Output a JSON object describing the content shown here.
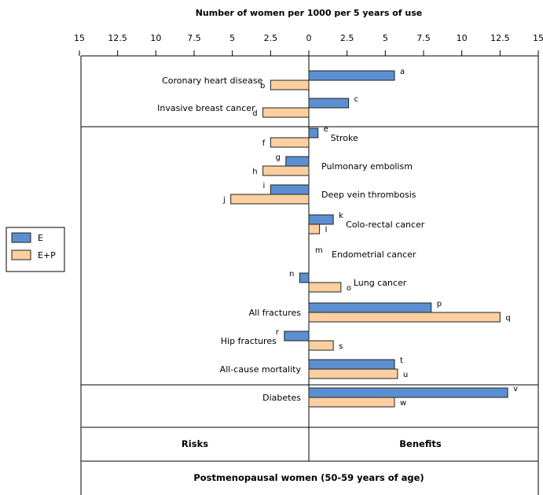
{
  "chart_data": {
    "type": "bar",
    "orientation": "horizontal",
    "title": "Number of women per 1000 per 5 years of use",
    "xlim": [
      -15,
      15
    ],
    "x_ticks": [
      -15,
      -12.5,
      -10,
      -7.5,
      -5,
      -2.5,
      0,
      2.5,
      5,
      7.5,
      10,
      12.5,
      15
    ],
    "x_tick_labels": [
      "15",
      "12.5",
      "10",
      "7.5",
      "5",
      "2.5",
      "0",
      "2.5",
      "5",
      "7.5",
      "10",
      "12.5",
      "15"
    ],
    "legend": {
      "placement": "left",
      "items": [
        {
          "label": "E",
          "color": "#5b8fd0"
        },
        {
          "label": "E+P",
          "color": "#fbcf9f"
        }
      ]
    },
    "colors": {
      "E": "#5b8fd0",
      "E+P": "#fbcf9f",
      "bar_stroke": "#222222"
    },
    "categories": [
      {
        "name": "Coronary heart disease",
        "label_side": "left",
        "group": 1,
        "bars": [
          {
            "series": "E",
            "value": 5.6,
            "letter": "a"
          },
          {
            "series": "E+P",
            "value": -2.5,
            "letter": "b"
          }
        ]
      },
      {
        "name": "Invasive breast cancer",
        "label_side": "left",
        "group": 1,
        "bars": [
          {
            "series": "E",
            "value": 2.6,
            "letter": "c"
          },
          {
            "series": "E+P",
            "value": -3.0,
            "letter": "d"
          }
        ]
      },
      {
        "name": "Stroke",
        "label_side": "right",
        "group": 2,
        "bars": [
          {
            "series": "E",
            "value": 0.6,
            "letter": "e"
          },
          {
            "series": "E+P",
            "value": -2.5,
            "letter": "f"
          }
        ]
      },
      {
        "name": "Pulmonary embolism",
        "label_side": "right",
        "group": 2,
        "bars": [
          {
            "series": "E",
            "value": -1.5,
            "letter": "g"
          },
          {
            "series": "E+P",
            "value": -3.0,
            "letter": "h"
          }
        ]
      },
      {
        "name": "Deep vein thrombosis",
        "label_side": "right",
        "group": 2,
        "bars": [
          {
            "series": "E",
            "value": -2.5,
            "letter": "i"
          },
          {
            "series": "E+P",
            "value": -5.1,
            "letter": "j"
          }
        ]
      },
      {
        "name": "Colo-rectal cancer",
        "label_side": "right",
        "group": 2,
        "bars": [
          {
            "series": "E",
            "value": 1.6,
            "letter": "k"
          },
          {
            "series": "E+P",
            "value": 0.7,
            "letter": "l"
          }
        ]
      },
      {
        "name": "Endometrial cancer",
        "label_side": "right",
        "group": 2,
        "bars": [
          {
            "series": "E",
            "value": 0,
            "letter": "m"
          }
        ]
      },
      {
        "name": "Lung cancer",
        "label_side": "right",
        "group": 2,
        "bars": [
          {
            "series": "E",
            "value": -0.6,
            "letter": "n"
          },
          {
            "series": "E+P",
            "value": 2.1,
            "letter": "o"
          }
        ]
      },
      {
        "name": "All fractures",
        "label_side": "left",
        "group": 2,
        "bars": [
          {
            "series": "E",
            "value": 8.0,
            "letter": "p"
          },
          {
            "series": "E+P",
            "value": 12.5,
            "letter": "q"
          }
        ]
      },
      {
        "name": "Hip fractures",
        "label_side": "left",
        "group": 2,
        "bars": [
          {
            "series": "E",
            "value": -1.6,
            "letter": "r"
          },
          {
            "series": "E+P",
            "value": 1.6,
            "letter": "s"
          }
        ]
      },
      {
        "name": "All-cause mortality",
        "label_side": "left",
        "group": 2,
        "bars": [
          {
            "series": "E",
            "value": 5.6,
            "letter": "t"
          },
          {
            "series": "E+P",
            "value": 5.8,
            "letter": "u"
          }
        ]
      },
      {
        "name": "Diabetes",
        "label_side": "left",
        "group": 3,
        "bars": [
          {
            "series": "E",
            "value": 13.0,
            "letter": "v"
          },
          {
            "series": "E+P",
            "value": 5.6,
            "letter": "w"
          }
        ]
      }
    ],
    "footer": {
      "left_label": "Risks",
      "right_label": "Benefits",
      "bottom_label": "Postmenopausal women (50-59 years of age)"
    }
  }
}
